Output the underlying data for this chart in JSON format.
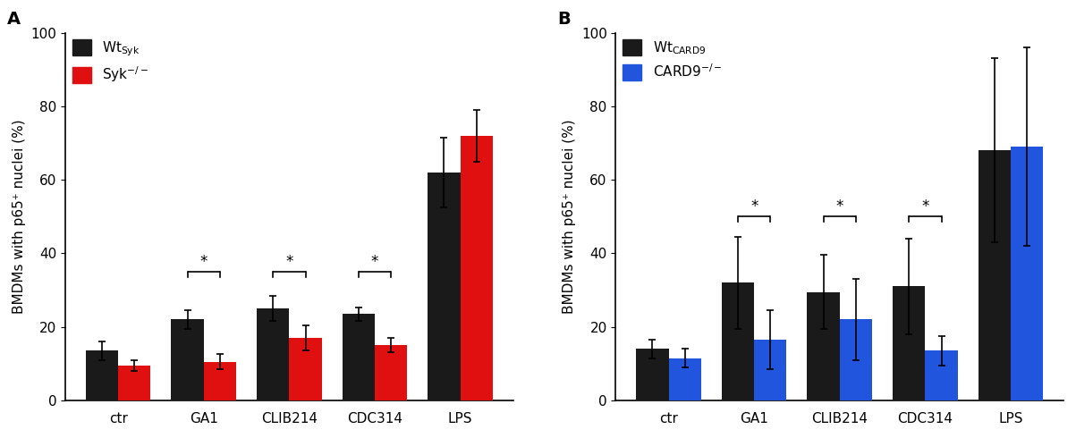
{
  "panel_A": {
    "label": "A",
    "categories": [
      "ctr",
      "GA1",
      "CLIB214",
      "CDC314",
      "LPS"
    ],
    "series1_color": "#1a1a1a",
    "series2_color": "#e01010",
    "series1_values": [
      13.5,
      22.0,
      25.0,
      23.5,
      62.0
    ],
    "series2_values": [
      9.5,
      10.5,
      17.0,
      15.0,
      72.0
    ],
    "series1_errors": [
      2.5,
      2.5,
      3.5,
      1.8,
      9.5
    ],
    "series2_errors": [
      1.5,
      2.0,
      3.5,
      2.0,
      7.0
    ],
    "ylabel": "BMDMs with p65⁺ nuclei (%)",
    "ylim": [
      0,
      100
    ],
    "yticks": [
      0,
      20,
      40,
      60,
      80,
      100
    ],
    "significance_brackets": [
      {
        "group": 1,
        "y": 35,
        "label": "*"
      },
      {
        "group": 2,
        "y": 35,
        "label": "*"
      },
      {
        "group": 3,
        "y": 35,
        "label": "*"
      }
    ],
    "legend_label1": "Wt",
    "legend_label1_sub": "Syk",
    "legend_label2": "Syk",
    "legend_label2_sup": "-/-"
  },
  "panel_B": {
    "label": "B",
    "categories": [
      "ctr",
      "GA1",
      "CLIB214",
      "CDC314",
      "LPS"
    ],
    "series1_color": "#1a1a1a",
    "series2_color": "#2255dd",
    "series1_values": [
      14.0,
      32.0,
      29.5,
      31.0,
      68.0
    ],
    "series2_values": [
      11.5,
      16.5,
      22.0,
      13.5,
      69.0
    ],
    "series1_errors": [
      2.5,
      12.5,
      10.0,
      13.0,
      25.0
    ],
    "series2_errors": [
      2.5,
      8.0,
      11.0,
      4.0,
      27.0
    ],
    "ylabel": "BMDMs with p65⁺ nuclei (%)",
    "ylim": [
      0,
      100
    ],
    "yticks": [
      0,
      20,
      40,
      60,
      80,
      100
    ],
    "significance_brackets": [
      {
        "group": 1,
        "y": 50,
        "label": "*"
      },
      {
        "group": 2,
        "y": 50,
        "label": "*"
      },
      {
        "group": 3,
        "y": 50,
        "label": "*"
      }
    ],
    "legend_label1": "Wt",
    "legend_label1_sub": "CARD9",
    "legend_label2": "CARD9",
    "legend_label2_sup": "-/-"
  },
  "bar_width": 0.38,
  "figure_bg": "#ffffff",
  "font_size": 11,
  "panel_label_fontsize": 14
}
